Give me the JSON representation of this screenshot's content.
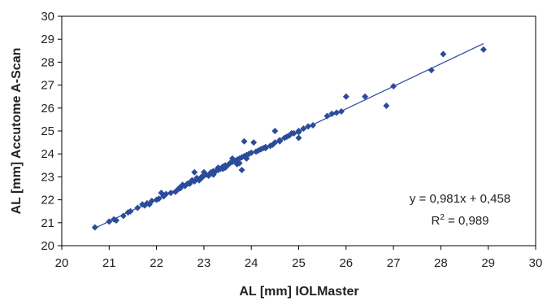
{
  "chart_data": {
    "type": "scatter",
    "xlabel": "AL [mm] IOLMaster",
    "ylabel": "AL [mm] Accutome A-Scan",
    "xlim": [
      20,
      30
    ],
    "ylim": [
      20,
      30
    ],
    "xticks": [
      20,
      21,
      22,
      23,
      24,
      25,
      26,
      27,
      28,
      29,
      30
    ],
    "yticks": [
      20,
      21,
      22,
      23,
      24,
      25,
      26,
      27,
      28,
      29,
      30
    ],
    "grid": "none",
    "marker": "diamond",
    "marker_color": "#2B4C9B",
    "line_color": "#2B4C9B",
    "trendline": {
      "type": "linear",
      "slope": 0.981,
      "intercept": 0.458,
      "x_range": [
        20.7,
        28.9
      ]
    },
    "annotation": {
      "equation": "y = 0,981x + 0,458",
      "r2_prefix": "R",
      "r2_sup": "2",
      "r2_value": " = 0,989"
    },
    "points": [
      [
        20.7,
        20.8
      ],
      [
        21.0,
        21.05
      ],
      [
        21.1,
        21.15
      ],
      [
        21.15,
        21.1
      ],
      [
        21.3,
        21.3
      ],
      [
        21.45,
        21.5
      ],
      [
        21.6,
        21.65
      ],
      [
        21.7,
        21.8
      ],
      [
        21.75,
        21.75
      ],
      [
        21.8,
        21.85
      ],
      [
        21.85,
        21.8
      ],
      [
        21.9,
        21.95
      ],
      [
        22.0,
        22.0
      ],
      [
        22.05,
        22.05
      ],
      [
        22.1,
        22.3
      ],
      [
        22.15,
        22.15
      ],
      [
        22.2,
        22.25
      ],
      [
        22.3,
        22.3
      ],
      [
        22.4,
        22.35
      ],
      [
        22.45,
        22.45
      ],
      [
        22.5,
        22.55
      ],
      [
        22.55,
        22.65
      ],
      [
        22.6,
        22.6
      ],
      [
        22.65,
        22.7
      ],
      [
        22.7,
        22.7
      ],
      [
        22.75,
        22.85
      ],
      [
        22.8,
        22.8
      ],
      [
        22.85,
        22.95
      ],
      [
        22.9,
        22.85
      ],
      [
        22.95,
        22.95
      ],
      [
        23.0,
        23.05
      ],
      [
        23.05,
        23.1
      ],
      [
        23.1,
        23.05
      ],
      [
        23.15,
        23.2
      ],
      [
        23.2,
        23.25
      ],
      [
        23.25,
        23.25
      ],
      [
        23.3,
        23.3
      ],
      [
        23.35,
        23.35
      ],
      [
        23.4,
        23.45
      ],
      [
        23.45,
        23.4
      ],
      [
        23.5,
        23.5
      ],
      [
        23.55,
        23.6
      ],
      [
        23.6,
        23.65
      ],
      [
        23.65,
        23.7
      ],
      [
        23.7,
        23.75
      ],
      [
        23.75,
        23.8
      ],
      [
        23.8,
        23.85
      ],
      [
        23.85,
        23.9
      ],
      [
        23.9,
        23.95
      ],
      [
        23.95,
        24.0
      ],
      [
        24.0,
        24.05
      ],
      [
        24.1,
        24.1
      ],
      [
        24.2,
        24.2
      ],
      [
        24.3,
        24.3
      ],
      [
        24.4,
        24.35
      ],
      [
        24.5,
        24.5
      ],
      [
        24.6,
        24.55
      ],
      [
        24.7,
        24.7
      ],
      [
        24.8,
        24.8
      ],
      [
        24.9,
        24.9
      ],
      [
        25.0,
        24.95
      ],
      [
        25.0,
        24.7
      ],
      [
        25.2,
        25.2
      ],
      [
        25.3,
        25.25
      ],
      [
        25.6,
        25.65
      ],
      [
        25.7,
        25.75
      ],
      [
        25.8,
        25.8
      ],
      [
        25.9,
        25.85
      ],
      [
        26.0,
        26.5
      ],
      [
        26.4,
        26.5
      ],
      [
        26.85,
        26.1
      ],
      [
        27.0,
        26.95
      ],
      [
        27.8,
        27.65
      ],
      [
        28.05,
        28.35
      ],
      [
        28.9,
        28.55
      ],
      [
        22.8,
        23.2
      ],
      [
        23.0,
        23.2
      ],
      [
        23.8,
        23.3
      ],
      [
        23.85,
        24.55
      ],
      [
        24.05,
        24.5
      ],
      [
        24.5,
        25.0
      ],
      [
        23.2,
        23.1
      ],
      [
        23.6,
        23.8
      ],
      [
        24.25,
        24.25
      ],
      [
        24.45,
        24.4
      ],
      [
        22.7,
        22.75
      ],
      [
        23.3,
        23.4
      ],
      [
        23.9,
        23.8
      ],
      [
        24.15,
        24.15
      ],
      [
        25.1,
        25.1
      ],
      [
        24.85,
        24.9
      ],
      [
        23.45,
        23.5
      ],
      [
        22.95,
        23.0
      ],
      [
        23.75,
        23.6
      ],
      [
        24.6,
        24.6
      ],
      [
        23.4,
        23.35
      ],
      [
        23.7,
        23.55
      ],
      [
        24.75,
        24.75
      ],
      [
        22.5,
        22.5
      ],
      [
        21.4,
        21.45
      ],
      [
        24.3,
        24.25
      ],
      [
        25.0,
        25.0
      ]
    ]
  }
}
